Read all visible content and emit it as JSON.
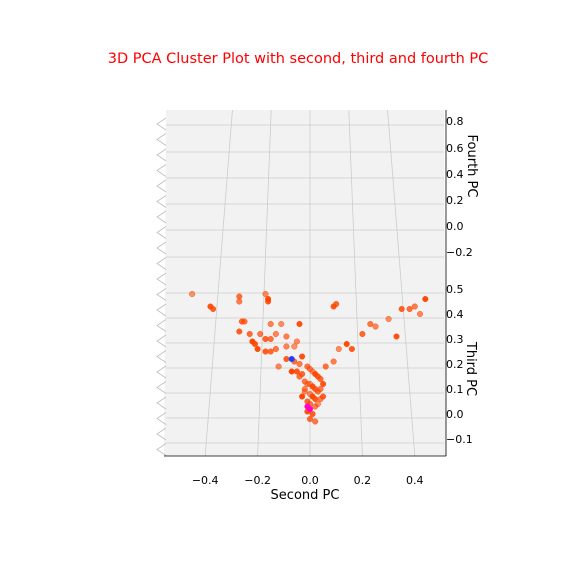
{
  "chart_data": {
    "type": "scatter",
    "projection": "3d",
    "title": "3D PCA Cluster Plot with second, third and fourth PC",
    "title_color": "#ff0000",
    "xlabel": "Second PC",
    "ylabel": "Third PC",
    "zlabel": "Fourth PC",
    "x_ticks": [
      "−0.4",
      "−0.2",
      "0.0",
      "0.2",
      "0.4"
    ],
    "y_ticks": [
      "0.5",
      "0.4",
      "0.3",
      "0.2",
      "0.1",
      "0.0",
      "−0.1"
    ],
    "z_ticks": [
      "0.8",
      "0.6",
      "0.4",
      "0.2",
      "0.0",
      "−0.2"
    ],
    "xlim": [
      -0.55,
      0.5
    ],
    "ylim": [
      -0.15,
      0.55
    ],
    "grid": true,
    "colors": {
      "primary": "#ff4500",
      "highlight_blue": "#1f3fff",
      "highlight_magenta": "#ff00c8"
    },
    "series": [
      {
        "color": "#ff4500",
        "points": [
          {
            "x": -0.45,
            "y": 0.48
          },
          {
            "x": -0.38,
            "y": 0.43
          },
          {
            "x": -0.37,
            "y": 0.42
          },
          {
            "x": -0.27,
            "y": 0.47
          },
          {
            "x": -0.27,
            "y": 0.45
          },
          {
            "x": -0.17,
            "y": 0.48
          },
          {
            "x": -0.16,
            "y": 0.46
          },
          {
            "x": -0.16,
            "y": 0.45
          },
          {
            "x": -0.26,
            "y": 0.37
          },
          {
            "x": -0.25,
            "y": 0.37
          },
          {
            "x": -0.15,
            "y": 0.36
          },
          {
            "x": -0.11,
            "y": 0.36
          },
          {
            "x": -0.04,
            "y": 0.36
          },
          {
            "x": -0.27,
            "y": 0.33
          },
          {
            "x": -0.23,
            "y": 0.32
          },
          {
            "x": -0.19,
            "y": 0.32
          },
          {
            "x": -0.13,
            "y": 0.32
          },
          {
            "x": -0.22,
            "y": 0.29
          },
          {
            "x": -0.21,
            "y": 0.28
          },
          {
            "x": -0.17,
            "y": 0.3
          },
          {
            "x": -0.15,
            "y": 0.3
          },
          {
            "x": -0.09,
            "y": 0.31
          },
          {
            "x": -0.05,
            "y": 0.29
          },
          {
            "x": -0.2,
            "y": 0.26
          },
          {
            "x": -0.17,
            "y": 0.25
          },
          {
            "x": -0.15,
            "y": 0.25
          },
          {
            "x": -0.13,
            "y": 0.26
          },
          {
            "x": -0.09,
            "y": 0.27
          },
          {
            "x": -0.06,
            "y": 0.27
          },
          {
            "x": -0.03,
            "y": 0.23
          },
          {
            "x": -0.09,
            "y": 0.22
          },
          {
            "x": -0.06,
            "y": 0.21
          },
          {
            "x": -0.04,
            "y": 0.2
          },
          {
            "x": -0.12,
            "y": 0.19
          },
          {
            "x": -0.07,
            "y": 0.17
          },
          {
            "x": -0.05,
            "y": 0.17
          },
          {
            "x": -0.03,
            "y": 0.16
          },
          {
            "x": -0.01,
            "y": 0.19
          },
          {
            "x": 0.0,
            "y": 0.18
          },
          {
            "x": 0.01,
            "y": 0.17
          },
          {
            "x": 0.02,
            "y": 0.16
          },
          {
            "x": 0.03,
            "y": 0.15
          },
          {
            "x": 0.04,
            "y": 0.14
          },
          {
            "x": -0.02,
            "y": 0.13
          },
          {
            "x": -0.01,
            "y": 0.12
          },
          {
            "x": 0.0,
            "y": 0.12
          },
          {
            "x": 0.01,
            "y": 0.11
          },
          {
            "x": 0.02,
            "y": 0.1
          },
          {
            "x": 0.03,
            "y": 0.09
          },
          {
            "x": 0.04,
            "y": 0.1
          },
          {
            "x": 0.0,
            "y": 0.08
          },
          {
            "x": 0.01,
            "y": 0.07
          },
          {
            "x": 0.02,
            "y": 0.06
          },
          {
            "x": -0.01,
            "y": 0.05
          },
          {
            "x": 0.0,
            "y": 0.04
          },
          {
            "x": 0.02,
            "y": 0.03
          },
          {
            "x": 0.03,
            "y": 0.04
          },
          {
            "x": -0.01,
            "y": 0.01
          },
          {
            "x": 0.01,
            "y": 0.0
          },
          {
            "x": 0.0,
            "y": -0.02
          },
          {
            "x": 0.02,
            "y": -0.03
          },
          {
            "x": -0.02,
            "y": 0.1
          },
          {
            "x": -0.03,
            "y": 0.07
          },
          {
            "x": 0.05,
            "y": 0.12
          },
          {
            "x": 0.05,
            "y": 0.07
          },
          {
            "x": 0.06,
            "y": 0.19
          },
          {
            "x": 0.09,
            "y": 0.21
          },
          {
            "x": 0.11,
            "y": 0.26
          },
          {
            "x": 0.14,
            "y": 0.28
          },
          {
            "x": 0.16,
            "y": 0.26
          },
          {
            "x": 0.2,
            "y": 0.32
          },
          {
            "x": 0.23,
            "y": 0.36
          },
          {
            "x": 0.25,
            "y": 0.35
          },
          {
            "x": 0.3,
            "y": 0.38
          },
          {
            "x": 0.33,
            "y": 0.31
          },
          {
            "x": 0.35,
            "y": 0.42
          },
          {
            "x": 0.38,
            "y": 0.42
          },
          {
            "x": 0.4,
            "y": 0.43
          },
          {
            "x": 0.42,
            "y": 0.4
          },
          {
            "x": 0.44,
            "y": 0.46
          },
          {
            "x": 0.09,
            "y": 0.43
          },
          {
            "x": 0.1,
            "y": 0.44
          },
          {
            "x": -0.04,
            "y": 0.15
          },
          {
            "x": 0.04,
            "y": 0.06
          },
          {
            "x": -0.02,
            "y": 0.09
          }
        ]
      },
      {
        "color": "#1f3fff",
        "points": [
          {
            "x": -0.07,
            "y": 0.22
          }
        ]
      },
      {
        "color": "#ff00c8",
        "points": [
          {
            "x": -0.01,
            "y": 0.03
          },
          {
            "x": 0.0,
            "y": 0.02
          }
        ]
      }
    ]
  }
}
